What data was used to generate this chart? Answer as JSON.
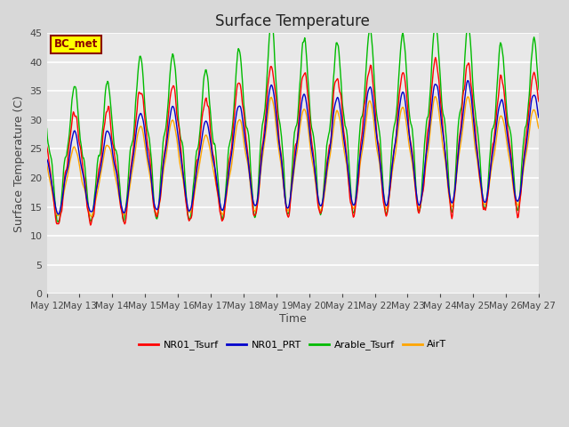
{
  "title": "Surface Temperature",
  "xlabel": "Time",
  "ylabel": "Surface Temperature (C)",
  "annotation_text": "BC_met",
  "annotation_color": "#8B0000",
  "annotation_bg": "#FFFF00",
  "ylim": [
    0,
    45
  ],
  "yticks": [
    0,
    5,
    10,
    15,
    20,
    25,
    30,
    35,
    40,
    45
  ],
  "x_tick_days": [
    12,
    13,
    14,
    15,
    16,
    17,
    18,
    19,
    20,
    21,
    22,
    23,
    24,
    25,
    26,
    27
  ],
  "bg_color": "#D8D8D8",
  "plot_bg_color": "#E8E8E8",
  "line_colors": {
    "NR01_Tsurf": "#FF0000",
    "NR01_PRT": "#0000CC",
    "Arable_Tsurf": "#00BB00",
    "AirT": "#FFA500"
  },
  "line_width": 1.0,
  "legend_labels": [
    "NR01_Tsurf",
    "NR01_PRT",
    "Arable_Tsurf",
    "AirT"
  ],
  "title_fontsize": 12,
  "label_fontsize": 9,
  "tick_fontsize": 8
}
